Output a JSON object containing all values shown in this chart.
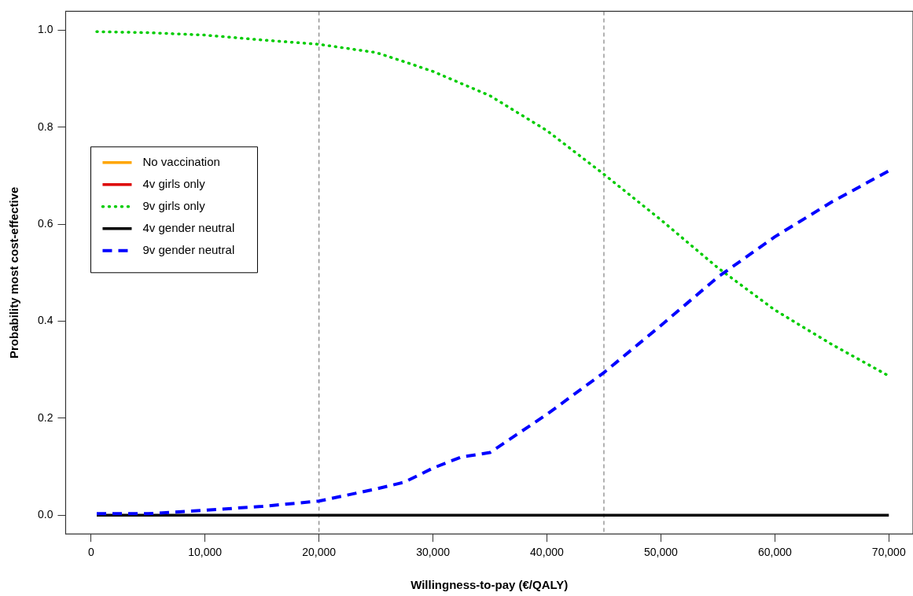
{
  "chart_data": {
    "type": "line",
    "xlabel": "Willingness-to-pay (€/QALY)",
    "ylabel": "Probability most cost-effective",
    "x": [
      500,
      5000,
      10000,
      15000,
      20000,
      25000,
      27500,
      30000,
      32500,
      35000,
      40000,
      45000,
      50000,
      55000,
      60000,
      65000,
      70000
    ],
    "series": [
      {
        "name": "No vaccination",
        "color": "#ffa500",
        "line_style": "solid",
        "values": [
          null,
          null,
          null,
          null,
          null,
          null,
          null,
          null,
          null,
          null,
          null,
          null,
          null,
          null,
          null,
          null,
          null
        ]
      },
      {
        "name": "4v girls only",
        "color": "#dd0000",
        "line_style": "solid",
        "values": [
          null,
          null,
          null,
          null,
          null,
          null,
          null,
          null,
          null,
          null,
          null,
          null,
          null,
          null,
          null,
          null,
          null
        ]
      },
      {
        "name": "9v girls only",
        "color": "#00cc00",
        "line_style": "dotted",
        "values": [
          0.997,
          0.995,
          0.99,
          0.98,
          0.971,
          0.954,
          0.935,
          0.915,
          0.89,
          0.865,
          0.793,
          0.703,
          0.609,
          0.51,
          0.423,
          0.352,
          0.287
        ]
      },
      {
        "name": "4v gender neutral",
        "color": "#000000",
        "line_style": "solid",
        "values": [
          0,
          0,
          0,
          0,
          0,
          0,
          0,
          0,
          0,
          0,
          0,
          0,
          0,
          0,
          0,
          0,
          0
        ]
      },
      {
        "name": "9v gender neutral",
        "color": "#0000ff",
        "line_style": "dashed",
        "values": [
          0.003,
          0.003,
          0.01,
          0.018,
          0.029,
          0.054,
          0.068,
          0.097,
          0.12,
          0.129,
          0.208,
          0.294,
          0.391,
          0.491,
          0.574,
          0.646,
          0.71
        ]
      }
    ],
    "xlim": [
      -2230,
      72120
    ],
    "ylim": [
      -0.039,
      1.039
    ],
    "xticks": [
      {
        "value": 0,
        "label": "0"
      },
      {
        "value": 10000,
        "label": "10,000"
      },
      {
        "value": 20000,
        "label": "20,000"
      },
      {
        "value": 30000,
        "label": "30,000"
      },
      {
        "value": 40000,
        "label": "40,000"
      },
      {
        "value": 50000,
        "label": "50,000"
      },
      {
        "value": 60000,
        "label": "60,000"
      },
      {
        "value": 70000,
        "label": "70,000"
      }
    ],
    "yticks": [
      {
        "value": 0,
        "label": "0.0"
      },
      {
        "value": 0.2,
        "label": "0.2"
      },
      {
        "value": 0.4,
        "label": "0.4"
      },
      {
        "value": 0.6,
        "label": "0.6"
      },
      {
        "value": 0.8,
        "label": "0.8"
      },
      {
        "value": 1,
        "label": "1.0"
      }
    ],
    "ref_lines": [
      {
        "axis": "x",
        "value": 20000,
        "color": "#808080",
        "line_style": "dashed"
      },
      {
        "axis": "x",
        "value": 45000,
        "color": "#808080",
        "line_style": "dashed"
      }
    ],
    "grid": false,
    "legend": "left",
    "marker": "none"
  }
}
